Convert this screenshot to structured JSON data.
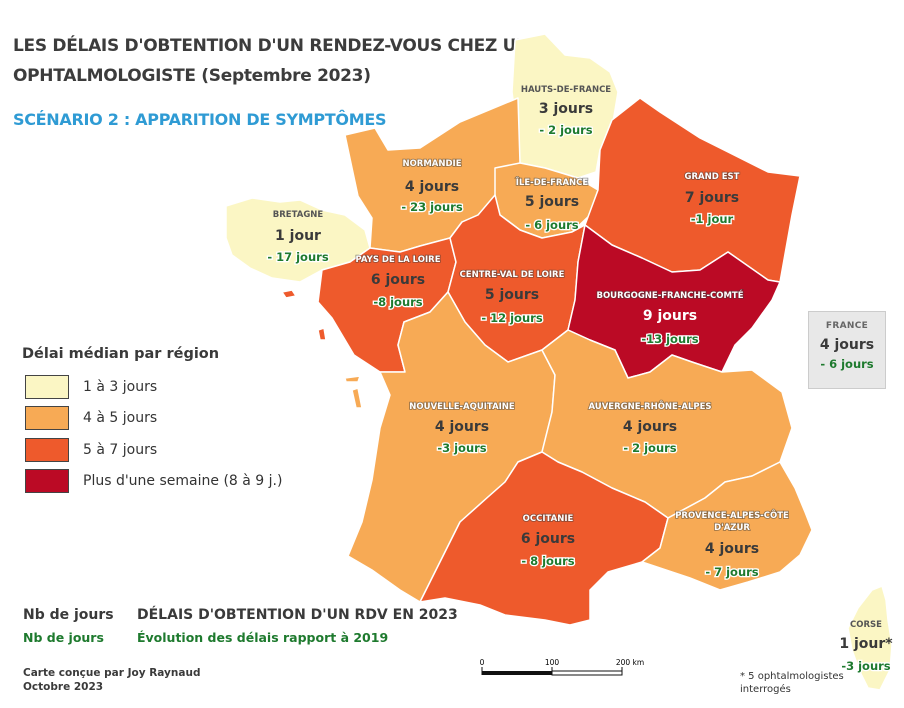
{
  "title": {
    "line1": "LES DÉLAIS D'OBTENTION D'UN RENDEZ-VOUS CHEZ UN",
    "line2": "OPHTALMOLOGISTE (Septembre 2023)",
    "scenario": "SCÉNARIO 2 : APPARITION DE SYMPTÔMES"
  },
  "colors": {
    "cat_1_3": "#fbf6c4",
    "cat_4_5": "#f7aa55",
    "cat_5_7": "#ee5a2c",
    "cat_8_9": "#bb0a25"
  },
  "legend": {
    "title": "Délai médian par région",
    "items": [
      {
        "label": "1 à 3 jours",
        "color": "#fbf6c4"
      },
      {
        "label": "4 à 5 jours",
        "color": "#f7aa55"
      },
      {
        "label": "5 à 7 jours",
        "color": "#ee5a2c"
      },
      {
        "label": "Plus d'une semaine (8 à 9 j.)",
        "color": "#bb0a25"
      }
    ]
  },
  "regions": {
    "hauts_de_france": {
      "name": "HAUTS-DE-FRANCE",
      "days": "3 jours",
      "evolution": "- 2 jours"
    },
    "normandie": {
      "name": "NORMANDIE",
      "days": "4 jours",
      "evolution": "- 23 jours"
    },
    "ile_de_france": {
      "name": "ÎLE-DE-FRANCE",
      "days": "5 jours",
      "evolution": "- 6 jours"
    },
    "grand_est": {
      "name": "GRAND EST",
      "days": "7 jours",
      "evolution": "-1 jour"
    },
    "bretagne": {
      "name": "BRETAGNE",
      "days": "1 jour",
      "evolution": "- 17 jours"
    },
    "pays_de_la_loire": {
      "name": "PAYS DE LA LOIRE",
      "days": "6 jours",
      "evolution": "-8 jours"
    },
    "centre_val_de_loire": {
      "name": "CENTRE-VAL DE LOIRE",
      "days": "5 jours",
      "evolution": "- 12 jours"
    },
    "bourgogne_franche_comte": {
      "name": "BOURGOGNE-FRANCHE-COMTÉ",
      "days": "9 jours",
      "evolution": "-13 jours"
    },
    "nouvelle_aquitaine": {
      "name": "NOUVELLE-AQUITAINE",
      "days": "4 jours",
      "evolution": "-3 jours"
    },
    "auvergne_rhone_alpes": {
      "name": "AUVERGNE-RHÔNE-ALPES",
      "days": "4 jours",
      "evolution": "- 2 jours"
    },
    "occitanie": {
      "name": "OCCITANIE",
      "days": "6 jours",
      "evolution": "- 8 jours"
    },
    "paca": {
      "name_line1": "PROVENCE-ALPES-CÔTE",
      "name_line2": "D'AZUR",
      "days": "4 jours",
      "evolution": "- 7 jours"
    },
    "corse": {
      "name": "CORSE",
      "days": "1 jour*",
      "evolution": "-3 jours"
    }
  },
  "france": {
    "name": "FRANCE",
    "days": "4 jours",
    "evolution": "- 6 jours"
  },
  "key": {
    "days_label": "Nb de jours",
    "days_evo_label": "Nb de jours",
    "desc": "DÉLAIS D'OBTENTION D'UN RDV EN 2023",
    "desc_evo": "Évolution des délais rapport à 2019"
  },
  "scale": {
    "ticks": [
      "0",
      "100",
      "200 km"
    ]
  },
  "credit": {
    "line1": "Carte conçue par Joy Raynaud",
    "line2": "Octobre 2023"
  },
  "note": "* 5 ophtalmologistes interrogés"
}
